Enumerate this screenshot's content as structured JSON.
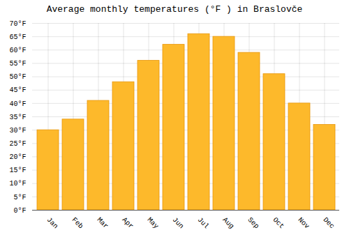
{
  "chart_data": {
    "type": "bar",
    "title": "Average monthly temperatures (°F ) in Braslovče",
    "categories": [
      "Jan",
      "Feb",
      "Mar",
      "Apr",
      "May",
      "Jun",
      "Jul",
      "Aug",
      "Sep",
      "Oct",
      "Nov",
      "Dec"
    ],
    "values": [
      30,
      34,
      41,
      48,
      56,
      62,
      66,
      65,
      59,
      51,
      40,
      32
    ],
    "color": "#FDB92B",
    "ylim": [
      0,
      70
    ],
    "yticks": [
      {
        "value": 0,
        "label": "0°F"
      },
      {
        "value": 5,
        "label": "5°F"
      },
      {
        "value": 10,
        "label": "10°F"
      },
      {
        "value": 15,
        "label": "15°F"
      },
      {
        "value": 20,
        "label": "20°F"
      },
      {
        "value": 25,
        "label": "25°F"
      },
      {
        "value": 30,
        "label": "30°F"
      },
      {
        "value": 35,
        "label": "35°F"
      },
      {
        "value": 40,
        "label": "40°F"
      },
      {
        "value": 45,
        "label": "45°F"
      },
      {
        "value": 50,
        "label": "50°F"
      },
      {
        "value": 55,
        "label": "55°F"
      },
      {
        "value": 60,
        "label": "60°F"
      },
      {
        "value": 65,
        "label": "65°F"
      },
      {
        "value": 70,
        "label": "70°F"
      }
    ],
    "grid": true
  }
}
